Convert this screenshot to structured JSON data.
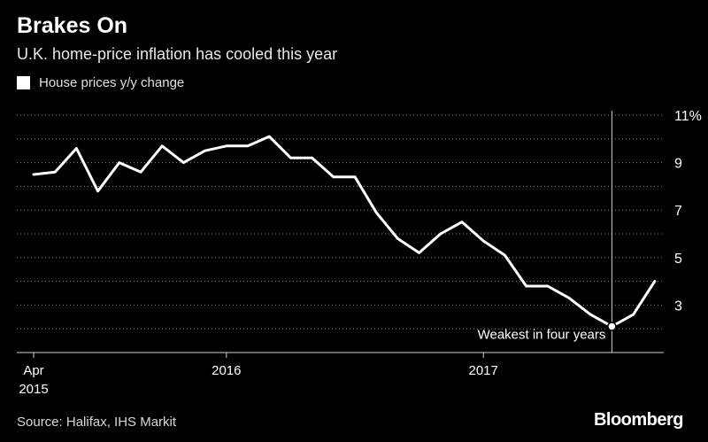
{
  "header": {
    "title": "Brakes On",
    "subtitle": "U.K. home-price inflation has cooled this year"
  },
  "legend": {
    "label": "House prices y/y change"
  },
  "footer": {
    "source": "Source: Halifax, IHS Markit",
    "brand": "Bloomberg"
  },
  "colors": {
    "background": "#000000",
    "line": "#ffffff",
    "grid": "#8c8c8c"
  },
  "chart_data": {
    "type": "line",
    "title": "Brakes On",
    "subtitle": "U.K. home-price inflation has cooled this year",
    "ylim": [
      1,
      11
    ],
    "yticks": [
      {
        "value": 11,
        "label": "11%"
      },
      {
        "value": 9,
        "label": "9"
      },
      {
        "value": 7,
        "label": "7"
      },
      {
        "value": 5,
        "label": "5"
      },
      {
        "value": 3,
        "label": "3"
      }
    ],
    "xticks": [
      {
        "x": "2015-04",
        "label": "Apr",
        "sublabel": "2015"
      },
      {
        "x": "2016-01",
        "label": "2016",
        "sublabel": ""
      },
      {
        "x": "2017-01",
        "label": "2017",
        "sublabel": ""
      }
    ],
    "grid": true,
    "legend_position": "top-left",
    "series": [
      {
        "name": "House prices y/y change",
        "points": [
          {
            "x": "2015-04",
            "y": 8.5
          },
          {
            "x": "2015-05",
            "y": 8.6
          },
          {
            "x": "2015-06",
            "y": 9.6
          },
          {
            "x": "2015-07",
            "y": 7.8
          },
          {
            "x": "2015-08",
            "y": 9.0
          },
          {
            "x": "2015-09",
            "y": 8.6
          },
          {
            "x": "2015-10",
            "y": 9.7
          },
          {
            "x": "2015-11",
            "y": 9.0
          },
          {
            "x": "2015-12",
            "y": 9.5
          },
          {
            "x": "2016-01",
            "y": 9.7
          },
          {
            "x": "2016-02",
            "y": 9.7
          },
          {
            "x": "2016-03",
            "y": 10.1
          },
          {
            "x": "2016-04",
            "y": 9.2
          },
          {
            "x": "2016-05",
            "y": 9.2
          },
          {
            "x": "2016-06",
            "y": 8.4
          },
          {
            "x": "2016-07",
            "y": 8.4
          },
          {
            "x": "2016-08",
            "y": 6.9
          },
          {
            "x": "2016-09",
            "y": 5.8
          },
          {
            "x": "2016-10",
            "y": 5.2
          },
          {
            "x": "2016-11",
            "y": 6.0
          },
          {
            "x": "2016-12",
            "y": 6.5
          },
          {
            "x": "2017-01",
            "y": 5.7
          },
          {
            "x": "2017-02",
            "y": 5.1
          },
          {
            "x": "2017-03",
            "y": 3.8
          },
          {
            "x": "2017-04",
            "y": 3.8
          },
          {
            "x": "2017-05",
            "y": 3.3
          },
          {
            "x": "2017-06",
            "y": 2.6
          },
          {
            "x": "2017-07",
            "y": 2.1
          },
          {
            "x": "2017-08",
            "y": 2.6
          },
          {
            "x": "2017-09",
            "y": 4.0
          }
        ]
      }
    ],
    "annotations": [
      {
        "x": "2017-07",
        "y": 2.1,
        "text": "Weakest in four years"
      }
    ]
  }
}
